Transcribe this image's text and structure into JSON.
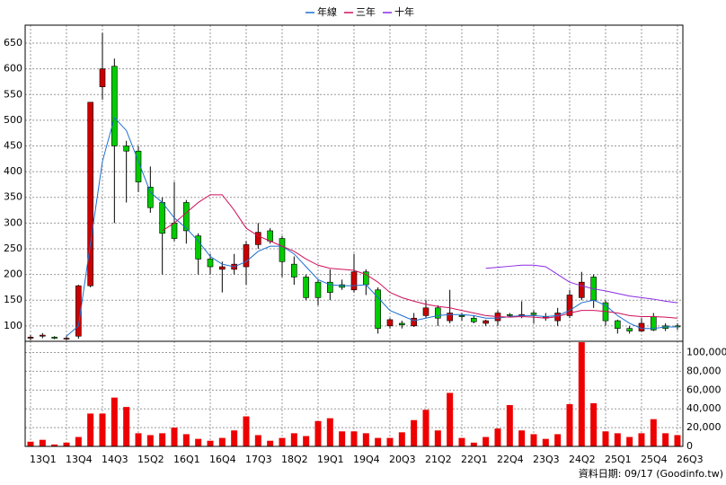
{
  "chart_data": [
    {
      "type": "candlestick",
      "legend": "top",
      "categories": [
        "13Q1",
        null,
        null,
        "13Q4",
        null,
        null,
        "14Q3",
        null,
        null,
        "15Q2",
        null,
        null,
        "16Q1",
        null,
        null,
        "16Q4",
        null,
        null,
        "17Q3",
        null,
        null,
        "18Q2",
        null,
        null,
        "19Q1",
        null,
        null,
        "19Q4",
        null,
        null,
        "20Q3",
        null,
        null,
        "21Q2",
        null,
        null,
        "22Q1",
        null,
        null,
        "22Q4",
        null,
        null,
        "23Q3",
        null,
        null,
        "24Q2",
        null,
        null,
        "25Q1",
        null,
        null,
        "25Q4",
        null,
        null,
        "26Q3"
      ],
      "open": [
        76,
        80,
        78,
        75,
        80,
        178,
        565,
        605,
        450,
        440,
        370,
        340,
        300,
        340,
        275,
        230,
        210,
        210,
        215,
        258,
        285,
        270,
        220,
        195,
        185,
        185,
        180,
        170,
        205,
        170,
        100,
        105,
        100,
        120,
        135,
        110,
        120,
        115,
        105,
        110,
        122,
        120,
        125,
        115,
        110,
        120,
        155,
        195,
        145,
        110,
        95,
        90,
        118,
        100,
        100
      ],
      "high": [
        82,
        86,
        80,
        80,
        180,
        535,
        670,
        620,
        460,
        450,
        410,
        350,
        380,
        345,
        280,
        240,
        225,
        240,
        265,
        300,
        290,
        275,
        235,
        200,
        190,
        210,
        190,
        240,
        210,
        175,
        115,
        110,
        125,
        150,
        140,
        170,
        125,
        120,
        112,
        130,
        125,
        148,
        130,
        125,
        135,
        170,
        205,
        200,
        150,
        112,
        100,
        115,
        125,
        105,
        105
      ],
      "low": [
        72,
        76,
        74,
        72,
        75,
        175,
        540,
        300,
        340,
        360,
        320,
        200,
        265,
        260,
        200,
        200,
        165,
        200,
        180,
        250,
        260,
        195,
        180,
        150,
        140,
        150,
        170,
        165,
        160,
        85,
        95,
        95,
        98,
        115,
        100,
        105,
        110,
        105,
        100,
        100,
        118,
        115,
        105,
        110,
        100,
        115,
        150,
        135,
        100,
        85,
        85,
        88,
        90,
        90,
        92
      ],
      "close": [
        78,
        82,
        76,
        76,
        178,
        535,
        600,
        450,
        440,
        380,
        330,
        280,
        270,
        285,
        230,
        215,
        215,
        220,
        258,
        282,
        265,
        225,
        195,
        155,
        155,
        165,
        175,
        205,
        180,
        95,
        112,
        102,
        115,
        135,
        115,
        125,
        118,
        108,
        110,
        125,
        120,
        122,
        122,
        118,
        125,
        160,
        185,
        150,
        110,
        95,
        90,
        105,
        92,
        95,
        98
      ],
      "up_color": "#cc0000",
      "down_color": "#00cc00",
      "series": [
        {
          "name": "年線",
          "color": "#1e6fd0",
          "values": [
            null,
            null,
            null,
            80,
            100,
            260,
            420,
            505,
            480,
            420,
            360,
            340,
            310,
            290,
            265,
            235,
            220,
            215,
            225,
            245,
            255,
            255,
            240,
            215,
            190,
            180,
            178,
            178,
            180,
            155,
            130,
            120,
            110,
            115,
            120,
            122,
            122,
            120,
            115,
            115,
            118,
            120,
            120,
            118,
            120,
            130,
            145,
            150,
            140,
            120,
            105,
            95,
            95,
            98,
            98
          ]
        },
        {
          "name": "三年",
          "color": "#d0105a",
          "values": [
            null,
            null,
            null,
            null,
            null,
            null,
            null,
            null,
            null,
            null,
            null,
            285,
            300,
            320,
            340,
            355,
            355,
            325,
            290,
            275,
            265,
            255,
            245,
            230,
            218,
            212,
            210,
            208,
            200,
            185,
            165,
            155,
            148,
            142,
            138,
            135,
            130,
            125,
            120,
            118,
            117,
            118,
            117,
            115,
            118,
            125,
            130,
            130,
            128,
            125,
            120,
            118,
            118,
            117,
            115
          ]
        },
        {
          "name": "十年",
          "color": "#8a2be2",
          "values": [
            null,
            null,
            null,
            null,
            null,
            null,
            null,
            null,
            null,
            null,
            null,
            null,
            null,
            null,
            null,
            null,
            null,
            null,
            null,
            null,
            null,
            null,
            null,
            null,
            null,
            null,
            null,
            null,
            null,
            null,
            null,
            null,
            null,
            null,
            null,
            null,
            null,
            null,
            212,
            214,
            216,
            218,
            218,
            215,
            200,
            185,
            178,
            172,
            168,
            163,
            158,
            155,
            152,
            148,
            145
          ]
        }
      ],
      "ylim": [
        70,
        685
      ],
      "yticks": [
        100,
        150,
        200,
        250,
        300,
        350,
        400,
        450,
        500,
        550,
        600,
        650
      ],
      "grid": true
    },
    {
      "type": "bar",
      "color": "#ee0000",
      "values": [
        5000,
        7000,
        2000,
        4000,
        10000,
        35000,
        35000,
        52000,
        42000,
        14000,
        12000,
        14000,
        20000,
        13000,
        8000,
        6000,
        9000,
        17000,
        32000,
        12000,
        6000,
        9000,
        14000,
        11000,
        27000,
        30000,
        16000,
        16000,
        14000,
        9000,
        9000,
        15000,
        28000,
        39000,
        17000,
        57000,
        9000,
        4000,
        10000,
        19000,
        44000,
        17000,
        13000,
        8000,
        13000,
        45000,
        111000,
        46000,
        16000,
        14000,
        10000,
        14000,
        29000,
        14000,
        12000
      ],
      "ylim": [
        0,
        112000
      ],
      "yticks": [
        0,
        {
          "value": 20000,
          "label": "20,000"
        },
        {
          "value": 40000,
          "label": "40,000"
        },
        {
          "value": 60000,
          "label": "60,000"
        },
        {
          "value": 80000,
          "label": "80,000"
        },
        {
          "value": 100000,
          "label": "100,000"
        }
      ],
      "grid": true
    }
  ],
  "footer": "資料日期: 09/17  (Goodinfo.tw)"
}
